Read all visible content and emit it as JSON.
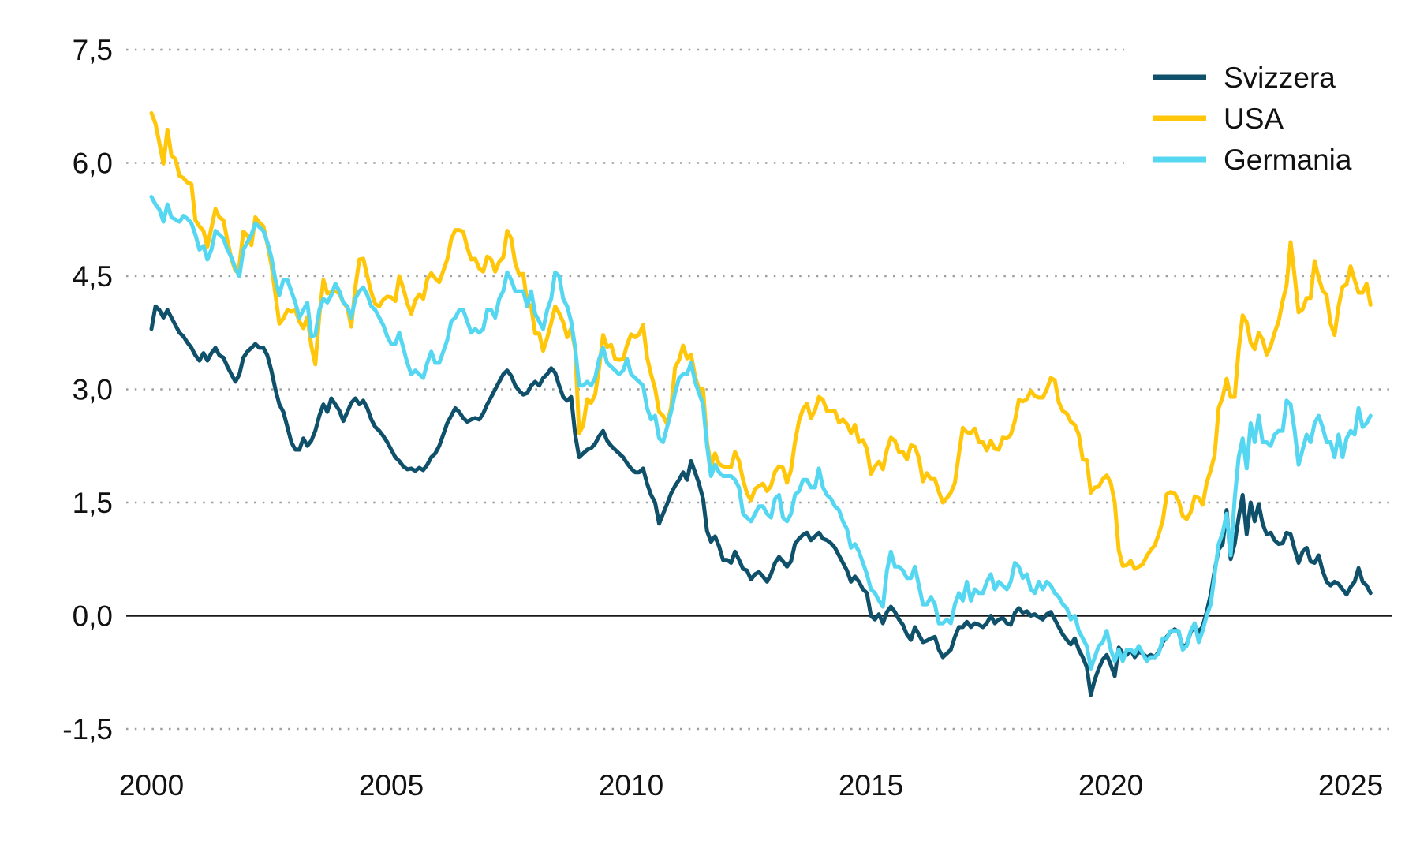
{
  "chart_data": {
    "type": "line",
    "title": "",
    "xlabel": "",
    "ylabel": "",
    "x_start_year": 2000,
    "points_per_year": 12,
    "xlim": [
      2000,
      2025.5
    ],
    "ylim": [
      -1.5,
      7.5
    ],
    "grid": "dotted-horizontal",
    "zero_line": true,
    "legend_position": "top-right",
    "colors": {
      "grid": "#9e9e9e",
      "zero_line": "#1a1a1a",
      "text": "#111111",
      "background": "#ffffff"
    },
    "y_ticks": [
      {
        "value": 7.5,
        "label": "7,5"
      },
      {
        "value": 6.0,
        "label": "6,0"
      },
      {
        "value": 4.5,
        "label": "4,5"
      },
      {
        "value": 3.0,
        "label": "3,0"
      },
      {
        "value": 1.5,
        "label": "1,5"
      },
      {
        "value": 0.0,
        "label": "0,0"
      },
      {
        "value": -1.5,
        "label": "-1,5"
      }
    ],
    "x_ticks": [
      {
        "value": 2000,
        "label": "2000"
      },
      {
        "value": 2005,
        "label": "2005"
      },
      {
        "value": 2010,
        "label": "2010"
      },
      {
        "value": 2015,
        "label": "2015"
      },
      {
        "value": 2020,
        "label": "2020"
      },
      {
        "value": 2025,
        "label": "2025"
      }
    ],
    "series": [
      {
        "name": "Svizzera",
        "color": "#0F506B",
        "values": [
          3.8,
          4.1,
          4.05,
          3.95,
          4.05,
          3.95,
          3.85,
          3.75,
          3.7,
          3.62,
          3.55,
          3.45,
          3.38,
          3.48,
          3.38,
          3.48,
          3.55,
          3.45,
          3.42,
          3.3,
          3.2,
          3.1,
          3.2,
          3.42,
          3.5,
          3.55,
          3.6,
          3.55,
          3.55,
          3.45,
          3.25,
          3.0,
          2.8,
          2.7,
          2.5,
          2.3,
          2.2,
          2.2,
          2.35,
          2.25,
          2.32,
          2.45,
          2.65,
          2.8,
          2.7,
          2.88,
          2.8,
          2.72,
          2.58,
          2.7,
          2.82,
          2.88,
          2.8,
          2.85,
          2.75,
          2.6,
          2.5,
          2.45,
          2.38,
          2.3,
          2.2,
          2.1,
          2.05,
          1.98,
          1.94,
          1.95,
          1.92,
          1.96,
          1.93,
          2.0,
          2.1,
          2.15,
          2.25,
          2.4,
          2.55,
          2.65,
          2.75,
          2.7,
          2.62,
          2.57,
          2.6,
          2.62,
          2.6,
          2.68,
          2.8,
          2.9,
          3.0,
          3.1,
          3.2,
          3.25,
          3.18,
          3.05,
          2.98,
          2.93,
          2.95,
          3.05,
          3.1,
          3.05,
          3.15,
          3.2,
          3.28,
          3.22,
          3.05,
          2.9,
          2.85,
          2.9,
          2.4,
          2.1,
          2.15,
          2.2,
          2.22,
          2.28,
          2.38,
          2.45,
          2.32,
          2.25,
          2.2,
          2.15,
          2.1,
          2.02,
          1.95,
          1.9,
          1.9,
          1.95,
          1.75,
          1.6,
          1.5,
          1.22,
          1.35,
          1.48,
          1.62,
          1.72,
          1.8,
          1.9,
          1.8,
          2.05,
          1.9,
          1.75,
          1.55,
          1.12,
          0.98,
          1.05,
          0.92,
          0.74,
          0.74,
          0.7,
          0.85,
          0.74,
          0.62,
          0.6,
          0.48,
          0.55,
          0.58,
          0.52,
          0.45,
          0.55,
          0.7,
          0.78,
          0.72,
          0.65,
          0.72,
          0.95,
          1.02,
          1.07,
          1.1,
          1.0,
          1.05,
          1.1,
          1.02,
          1.0,
          0.96,
          0.9,
          0.8,
          0.7,
          0.6,
          0.45,
          0.52,
          0.45,
          0.35,
          0.3,
          0.0,
          -0.05,
          0.02,
          -0.1,
          0.05,
          0.12,
          0.05,
          -0.05,
          -0.12,
          -0.25,
          -0.32,
          -0.15,
          -0.25,
          -0.35,
          -0.33,
          -0.3,
          -0.28,
          -0.45,
          -0.55,
          -0.5,
          -0.45,
          -0.28,
          -0.15,
          -0.15,
          -0.08,
          -0.15,
          -0.1,
          -0.12,
          -0.15,
          -0.1,
          0.0,
          -0.1,
          -0.05,
          -0.03,
          -0.1,
          -0.12,
          0.04,
          0.1,
          0.04,
          0.06,
          0.0,
          0.02,
          -0.02,
          -0.05,
          0.02,
          0.05,
          -0.05,
          -0.15,
          -0.25,
          -0.32,
          -0.38,
          -0.3,
          -0.45,
          -0.55,
          -0.68,
          -1.05,
          -0.85,
          -0.7,
          -0.58,
          -0.52,
          -0.65,
          -0.8,
          -0.42,
          -0.5,
          -0.52,
          -0.45,
          -0.55,
          -0.48,
          -0.5,
          -0.55,
          -0.52,
          -0.55,
          -0.48,
          -0.35,
          -0.28,
          -0.22,
          -0.18,
          -0.22,
          -0.42,
          -0.38,
          -0.22,
          -0.12,
          -0.22,
          -0.14,
          0.05,
          0.28,
          0.6,
          0.88,
          0.95,
          1.4,
          0.75,
          0.95,
          1.3,
          1.6,
          1.08,
          1.5,
          1.25,
          1.48,
          1.22,
          1.08,
          1.1,
          1.0,
          0.95,
          0.96,
          1.1,
          1.08,
          0.88,
          0.7,
          0.85,
          0.9,
          0.72,
          0.7,
          0.8,
          0.6,
          0.45,
          0.4,
          0.45,
          0.42,
          0.35,
          0.28,
          0.38,
          0.45,
          0.63,
          0.45,
          0.4,
          0.3
        ]
      },
      {
        "name": "USA",
        "color": "#FFC60A",
        "values": [
          6.66,
          6.52,
          6.26,
          5.99,
          6.44,
          6.1,
          6.05,
          5.83,
          5.8,
          5.74,
          5.72,
          5.24,
          5.16,
          5.1,
          4.89,
          5.14,
          5.39,
          5.28,
          5.24,
          4.97,
          4.73,
          4.57,
          4.65,
          5.09,
          5.04,
          4.91,
          5.28,
          5.21,
          5.16,
          4.93,
          4.65,
          4.26,
          3.87,
          3.94,
          4.05,
          4.03,
          4.05,
          3.9,
          3.81,
          3.96,
          3.57,
          3.33,
          3.98,
          4.45,
          4.27,
          4.29,
          4.3,
          4.27,
          4.15,
          4.08,
          3.83,
          4.35,
          4.72,
          4.73,
          4.5,
          4.28,
          4.13,
          4.1,
          4.19,
          4.23,
          4.22,
          4.17,
          4.5,
          4.34,
          4.14,
          4.0,
          4.18,
          4.26,
          4.2,
          4.46,
          4.54,
          4.47,
          4.42,
          4.57,
          4.72,
          4.99,
          5.11,
          5.11,
          5.09,
          4.88,
          4.72,
          4.73,
          4.6,
          4.56,
          4.76,
          4.72,
          4.56,
          4.69,
          4.75,
          5.1,
          5.0,
          4.67,
          4.52,
          4.53,
          4.15,
          4.1,
          3.74,
          3.74,
          3.51,
          3.68,
          3.88,
          4.1,
          4.01,
          3.89,
          3.69,
          3.81,
          3.53,
          2.42,
          2.52,
          2.87,
          2.82,
          2.93,
          3.29,
          3.72,
          3.56,
          3.59,
          3.4,
          3.39,
          3.4,
          3.59,
          3.73,
          3.69,
          3.73,
          3.85,
          3.42,
          3.2,
          3.01,
          2.7,
          2.65,
          2.54,
          2.76,
          3.29,
          3.39,
          3.58,
          3.41,
          3.46,
          3.17,
          3.0,
          3.0,
          2.3,
          1.98,
          2.15,
          2.01,
          1.98,
          1.97,
          1.97,
          2.17,
          2.05,
          1.8,
          1.62,
          1.53,
          1.68,
          1.72,
          1.75,
          1.65,
          1.72,
          1.91,
          1.98,
          1.96,
          1.76,
          1.93,
          2.3,
          2.58,
          2.74,
          2.81,
          2.62,
          2.72,
          2.9,
          2.86,
          2.71,
          2.72,
          2.71,
          2.56,
          2.6,
          2.54,
          2.42,
          2.53,
          2.3,
          2.33,
          2.21,
          1.88,
          1.98,
          2.04,
          1.94,
          2.2,
          2.36,
          2.32,
          2.17,
          2.17,
          2.07,
          2.26,
          2.24,
          2.09,
          1.78,
          1.89,
          1.81,
          1.81,
          1.64,
          1.5,
          1.56,
          1.63,
          1.76,
          2.14,
          2.49,
          2.43,
          2.42,
          2.48,
          2.3,
          2.3,
          2.19,
          2.32,
          2.21,
          2.2,
          2.36,
          2.35,
          2.4,
          2.58,
          2.86,
          2.84,
          2.87,
          2.98,
          2.91,
          2.89,
          2.89,
          3.0,
          3.15,
          3.12,
          2.83,
          2.71,
          2.68,
          2.57,
          2.53,
          2.4,
          2.07,
          2.06,
          1.63,
          1.7,
          1.71,
          1.81,
          1.86,
          1.76,
          1.5,
          0.87,
          0.66,
          0.67,
          0.73,
          0.62,
          0.65,
          0.68,
          0.79,
          0.87,
          0.93,
          1.08,
          1.26,
          1.61,
          1.64,
          1.62,
          1.52,
          1.32,
          1.28,
          1.37,
          1.58,
          1.56,
          1.47,
          1.76,
          1.93,
          2.13,
          2.75,
          2.9,
          3.14,
          2.9,
          2.9,
          3.52,
          3.98,
          3.89,
          3.62,
          3.53,
          3.75,
          3.66,
          3.46,
          3.57,
          3.75,
          3.9,
          4.17,
          4.38,
          4.95,
          4.5,
          4.02,
          4.06,
          4.21,
          4.21,
          4.7,
          4.48,
          4.31,
          4.25,
          3.87,
          3.72,
          4.1,
          4.36,
          4.39,
          4.63,
          4.45,
          4.28,
          4.28,
          4.4,
          4.12
        ]
      },
      {
        "name": "Germania",
        "color": "#55D7F2",
        "values": [
          5.55,
          5.45,
          5.38,
          5.22,
          5.45,
          5.28,
          5.25,
          5.22,
          5.3,
          5.26,
          5.2,
          5.05,
          4.85,
          4.9,
          4.72,
          4.85,
          5.1,
          5.05,
          5.0,
          4.85,
          4.75,
          4.6,
          4.5,
          4.85,
          4.95,
          5.05,
          5.2,
          5.15,
          5.1,
          4.95,
          4.75,
          4.45,
          4.25,
          4.45,
          4.45,
          4.3,
          4.15,
          3.95,
          4.05,
          4.15,
          3.7,
          3.72,
          4.05,
          4.2,
          4.15,
          4.25,
          4.4,
          4.3,
          4.15,
          4.1,
          3.95,
          4.2,
          4.3,
          4.35,
          4.25,
          4.1,
          4.05,
          3.95,
          3.85,
          3.7,
          3.6,
          3.6,
          3.75,
          3.55,
          3.35,
          3.2,
          3.25,
          3.2,
          3.15,
          3.35,
          3.5,
          3.35,
          3.35,
          3.5,
          3.65,
          3.9,
          3.95,
          4.05,
          4.05,
          3.9,
          3.75,
          3.8,
          3.75,
          3.8,
          4.05,
          4.05,
          3.95,
          4.2,
          4.3,
          4.55,
          4.45,
          4.3,
          4.3,
          4.3,
          4.1,
          4.3,
          4.0,
          3.9,
          3.8,
          4.05,
          4.2,
          4.55,
          4.5,
          4.2,
          4.1,
          3.9,
          3.55,
          3.05,
          3.05,
          3.1,
          3.05,
          3.15,
          3.4,
          3.55,
          3.35,
          3.3,
          3.25,
          3.2,
          3.25,
          3.4,
          3.2,
          3.15,
          3.1,
          3.05,
          2.75,
          2.6,
          2.65,
          2.35,
          2.3,
          2.5,
          2.7,
          2.95,
          3.15,
          3.2,
          3.2,
          3.35,
          3.1,
          2.95,
          2.8,
          2.25,
          1.85,
          2.0,
          1.9,
          1.85,
          1.85,
          1.85,
          1.8,
          1.7,
          1.35,
          1.3,
          1.25,
          1.35,
          1.45,
          1.45,
          1.35,
          1.3,
          1.55,
          1.6,
          1.3,
          1.25,
          1.35,
          1.6,
          1.65,
          1.8,
          1.8,
          1.7,
          1.7,
          1.95,
          1.7,
          1.6,
          1.55,
          1.45,
          1.4,
          1.25,
          1.15,
          0.9,
          0.95,
          0.85,
          0.7,
          0.55,
          0.35,
          0.3,
          0.2,
          0.12,
          0.6,
          0.85,
          0.65,
          0.65,
          0.6,
          0.5,
          0.5,
          0.65,
          0.4,
          0.15,
          0.15,
          0.25,
          0.15,
          -0.1,
          -0.1,
          -0.05,
          -0.1,
          0.15,
          0.3,
          0.2,
          0.45,
          0.2,
          0.35,
          0.3,
          0.3,
          0.45,
          0.55,
          0.35,
          0.45,
          0.4,
          0.35,
          0.45,
          0.7,
          0.65,
          0.5,
          0.55,
          0.35,
          0.3,
          0.45,
          0.35,
          0.45,
          0.4,
          0.3,
          0.25,
          0.15,
          0.1,
          -0.05,
          0.0,
          -0.2,
          -0.3,
          -0.4,
          -0.7,
          -0.55,
          -0.4,
          -0.35,
          -0.2,
          -0.45,
          -0.6,
          -0.45,
          -0.6,
          -0.45,
          -0.45,
          -0.5,
          -0.4,
          -0.5,
          -0.6,
          -0.55,
          -0.55,
          -0.5,
          -0.3,
          -0.3,
          -0.2,
          -0.2,
          -0.2,
          -0.45,
          -0.4,
          -0.2,
          -0.1,
          -0.35,
          -0.2,
          0.0,
          0.15,
          0.55,
          0.95,
          1.1,
          1.35,
          0.8,
          1.55,
          2.1,
          2.35,
          1.95,
          2.55,
          2.3,
          2.65,
          2.3,
          2.3,
          2.25,
          2.4,
          2.45,
          2.45,
          2.85,
          2.8,
          2.45,
          2.0,
          2.2,
          2.4,
          2.3,
          2.55,
          2.65,
          2.5,
          2.3,
          2.3,
          2.1,
          2.4,
          2.1,
          2.35,
          2.45,
          2.4,
          2.75,
          2.5,
          2.55,
          2.65
        ]
      }
    ]
  }
}
